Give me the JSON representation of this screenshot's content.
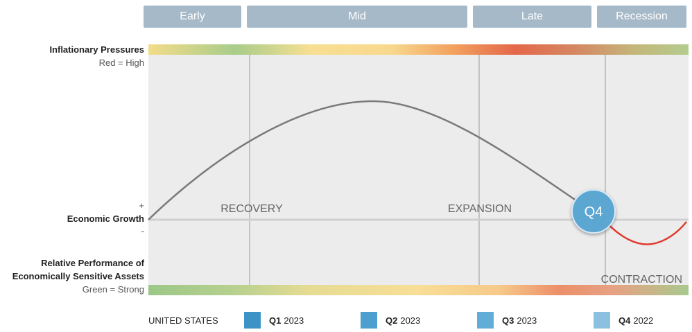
{
  "phases": [
    "Early",
    "Mid",
    "Late",
    "Recession"
  ],
  "left_labels": {
    "inflation_title": "Inflationary Pressures",
    "inflation_sub": "Red = High",
    "plus": "+",
    "growth": "Economic Growth",
    "minus": "-",
    "relperf_line1": "Relative Performance of",
    "relperf_line2": "Economically Sensitive Assets",
    "relperf_sub": "Green = Strong"
  },
  "regions": {
    "recovery": "RECOVERY",
    "expansion": "EXPANSION",
    "contraction": "CONTRACTION"
  },
  "marker": "Q4",
  "legend": {
    "country": "UNITED STATES",
    "items": [
      {
        "q": "Q1",
        "year": "2023",
        "color": "#3d93c6"
      },
      {
        "q": "Q2",
        "year": "2023",
        "color": "#4d9fd0"
      },
      {
        "q": "Q3",
        "year": "2023",
        "color": "#62acd8"
      },
      {
        "q": "Q4",
        "year": "2022",
        "color": "#8bc0e1"
      }
    ]
  },
  "colors": {
    "phase_bg": "#a6b9c9",
    "panel_bg": "#ececec",
    "curve": "#7a7a7a",
    "contraction_curve": "#e03a2f",
    "marker": "#5ba6d2"
  }
}
